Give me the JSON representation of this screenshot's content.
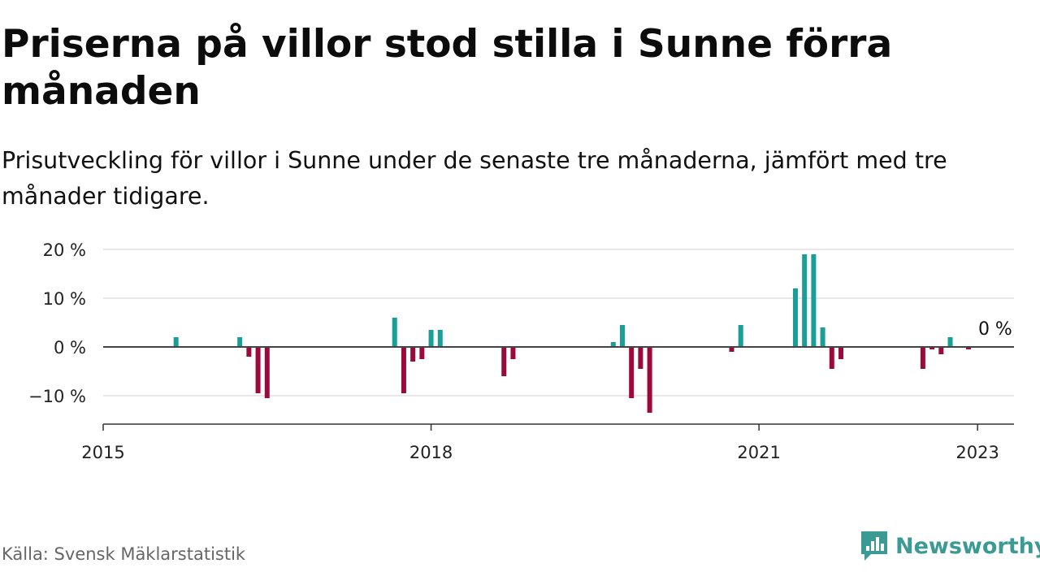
{
  "title": "Priserna på villor stod stilla i Sunne förra månaden",
  "subtitle": "Prisutveckling för villor i Sunne under de senaste tre månaderna, jämfört med tre månader tidigare.",
  "source": "Källa: Svensk Mäklarstatistik",
  "brand": {
    "name": "Newsworthy",
    "icon": "newsworthy-logo-icon",
    "color": "#3c9a94"
  },
  "colors": {
    "positive": "#1a9e98",
    "negative": "#9c0a3c",
    "grid": "#d9d9d9",
    "zero_line": "#444444"
  },
  "chart_data": {
    "type": "bar",
    "title": "Priserna på villor stod stilla i Sunne förra månaden",
    "subtitle": "Prisutveckling för villor i Sunne under de senaste tre månaderna, jämfört med tre månader tidigare.",
    "xlabel": "",
    "ylabel": "",
    "x_range": [
      "2015-01",
      "2023-05"
    ],
    "ylim": [
      -15,
      20
    ],
    "y_ticks": [
      {
        "value": 20,
        "label": "20 %"
      },
      {
        "value": 10,
        "label": "10 %"
      },
      {
        "value": 0,
        "label": "0 %"
      },
      {
        "value": -10,
        "label": "−10 %"
      }
    ],
    "x_ticks": [
      {
        "value": "2015-01",
        "label": "2015"
      },
      {
        "value": "2018-01",
        "label": "2018"
      },
      {
        "value": "2021-01",
        "label": "2021"
      },
      {
        "value": "2023-01",
        "label": "2023"
      }
    ],
    "grid": true,
    "legend": "none",
    "annotation": {
      "date": "2022-12",
      "label": "0 %"
    },
    "series": [
      {
        "values": [
          {
            "date": "2015-09",
            "value": 2
          },
          {
            "date": "2016-04",
            "value": 2
          },
          {
            "date": "2016-05",
            "value": -2
          },
          {
            "date": "2016-06",
            "value": -9.5
          },
          {
            "date": "2016-07",
            "value": -10.5
          },
          {
            "date": "2017-09",
            "value": 6
          },
          {
            "date": "2017-10",
            "value": -9.5
          },
          {
            "date": "2017-11",
            "value": -3
          },
          {
            "date": "2017-12",
            "value": -2.5
          },
          {
            "date": "2018-01",
            "value": 3.5
          },
          {
            "date": "2018-02",
            "value": 3.5
          },
          {
            "date": "2018-09",
            "value": -6
          },
          {
            "date": "2018-10",
            "value": -2.5
          },
          {
            "date": "2019-09",
            "value": 1
          },
          {
            "date": "2019-10",
            "value": 4.5
          },
          {
            "date": "2019-11",
            "value": -10.5
          },
          {
            "date": "2019-12",
            "value": -4.5
          },
          {
            "date": "2020-01",
            "value": -13.5
          },
          {
            "date": "2020-10",
            "value": -1
          },
          {
            "date": "2020-11",
            "value": 4.5
          },
          {
            "date": "2021-05",
            "value": 12
          },
          {
            "date": "2021-06",
            "value": 19
          },
          {
            "date": "2021-07",
            "value": 19
          },
          {
            "date": "2021-08",
            "value": 4
          },
          {
            "date": "2021-09",
            "value": -4.5
          },
          {
            "date": "2021-10",
            "value": -2.5
          },
          {
            "date": "2022-07",
            "value": -4.5
          },
          {
            "date": "2022-08",
            "value": -0.5
          },
          {
            "date": "2022-09",
            "value": -1.5
          },
          {
            "date": "2022-10",
            "value": 2
          },
          {
            "date": "2022-12",
            "value": -0.5
          }
        ]
      }
    ]
  }
}
